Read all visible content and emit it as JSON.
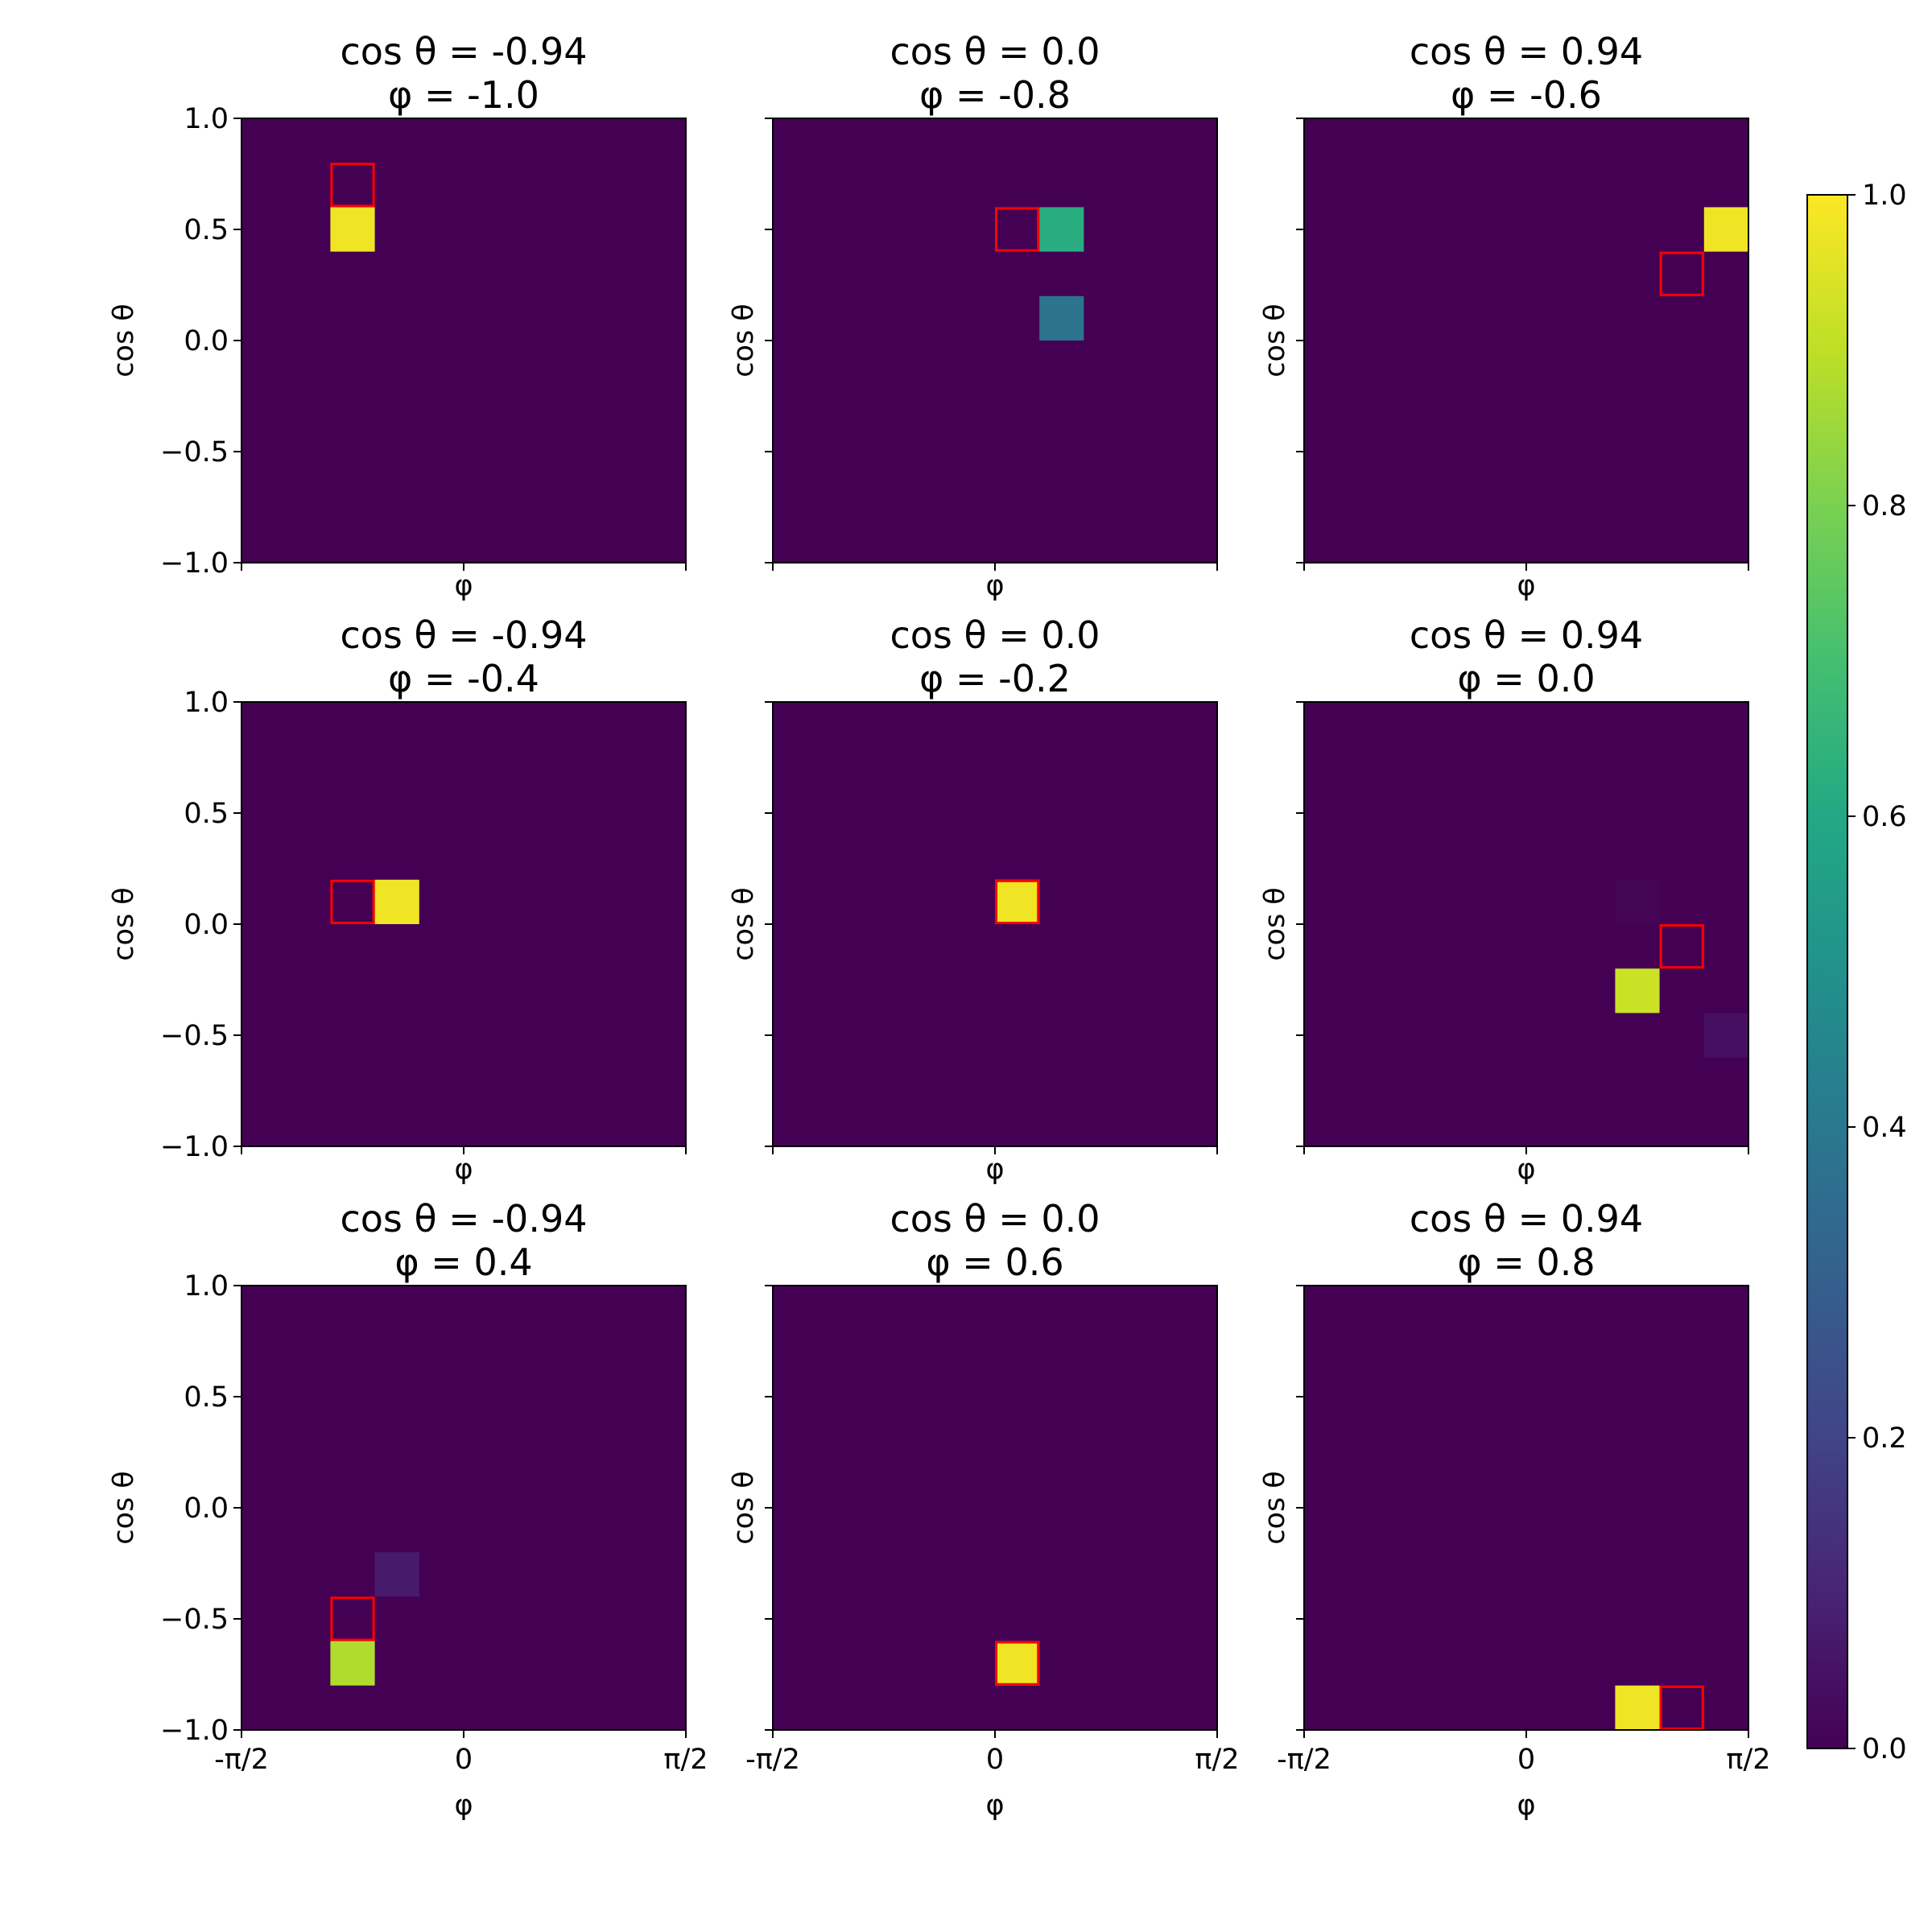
{
  "chart_data": {
    "type": "heatmap",
    "grid": false,
    "colormap": "viridis",
    "colorbar": {
      "range": [
        0.0,
        1.0
      ],
      "ticks": [
        0.0,
        0.2,
        0.4,
        0.6,
        0.8,
        1.0
      ],
      "tick_labels": [
        "0.0",
        "0.2",
        "0.4",
        "0.6",
        "0.8",
        "1.0"
      ],
      "placement": "right"
    },
    "axes_defaults": {
      "xlabel": "φ",
      "ylabel": "cos θ",
      "xlim": [
        -1.5708,
        1.5708
      ],
      "ylim": [
        -1.0,
        1.0
      ],
      "x_ticks": [
        -1.5708,
        0,
        1.5708
      ],
      "x_tick_labels": [
        "-π/2",
        "0",
        "π/2"
      ],
      "y_ticks": [
        -1.0,
        -0.5,
        0.0,
        0.5,
        1.0
      ],
      "y_tick_labels": [
        "−1.0",
        "−0.5",
        "0.0",
        "0.5",
        "1.0"
      ],
      "bins": {
        "nx": 10,
        "ny": 10
      }
    },
    "panels": [
      {
        "title_line1": "cos θ = -0.94",
        "title_line2": "φ = -1.0",
        "cells": [
          {
            "ix": 2,
            "iy": 7,
            "value": 0.98
          }
        ],
        "highlight": {
          "ix": 2,
          "iy": 8
        }
      },
      {
        "title_line1": "cos θ = 0.0",
        "title_line2": "φ = -0.8",
        "cells": [
          {
            "ix": 6,
            "iy": 7,
            "value": 0.62
          },
          {
            "ix": 6,
            "iy": 5,
            "value": 0.38
          }
        ],
        "highlight": {
          "ix": 5,
          "iy": 7
        }
      },
      {
        "title_line1": "cos θ = 0.94",
        "title_line2": "φ = -0.6",
        "cells": [
          {
            "ix": 9,
            "iy": 7,
            "value": 0.98
          }
        ],
        "highlight": {
          "ix": 8,
          "iy": 6
        }
      },
      {
        "title_line1": "cos θ = -0.94",
        "title_line2": "φ = -0.4",
        "cells": [
          {
            "ix": 3,
            "iy": 5,
            "value": 0.98
          }
        ],
        "highlight": {
          "ix": 2,
          "iy": 5
        }
      },
      {
        "title_line1": "cos θ = 0.0",
        "title_line2": "φ = -0.2",
        "cells": [
          {
            "ix": 5,
            "iy": 5,
            "value": 0.98
          }
        ],
        "highlight": {
          "ix": 5,
          "iy": 5
        }
      },
      {
        "title_line1": "cos θ = 0.94",
        "title_line2": "φ = 0.0",
        "cells": [
          {
            "ix": 7,
            "iy": 3,
            "value": 0.92
          },
          {
            "ix": 9,
            "iy": 2,
            "value": 0.04
          },
          {
            "ix": 7,
            "iy": 5,
            "value": 0.01
          }
        ],
        "highlight": {
          "ix": 8,
          "iy": 4
        }
      },
      {
        "title_line1": "cos θ = -0.94",
        "title_line2": "φ = 0.4",
        "cells": [
          {
            "ix": 2,
            "iy": 1,
            "value": 0.88
          },
          {
            "ix": 3,
            "iy": 3,
            "value": 0.07
          }
        ],
        "highlight": {
          "ix": 2,
          "iy": 2
        }
      },
      {
        "title_line1": "cos θ = 0.0",
        "title_line2": "φ = 0.6",
        "cells": [
          {
            "ix": 5,
            "iy": 1,
            "value": 0.98
          }
        ],
        "highlight": {
          "ix": 5,
          "iy": 1
        }
      },
      {
        "title_line1": "cos θ = 0.94",
        "title_line2": "φ = 0.8",
        "cells": [
          {
            "ix": 7,
            "iy": 0,
            "value": 0.98
          }
        ],
        "highlight": {
          "ix": 8,
          "iy": 0
        }
      }
    ]
  }
}
